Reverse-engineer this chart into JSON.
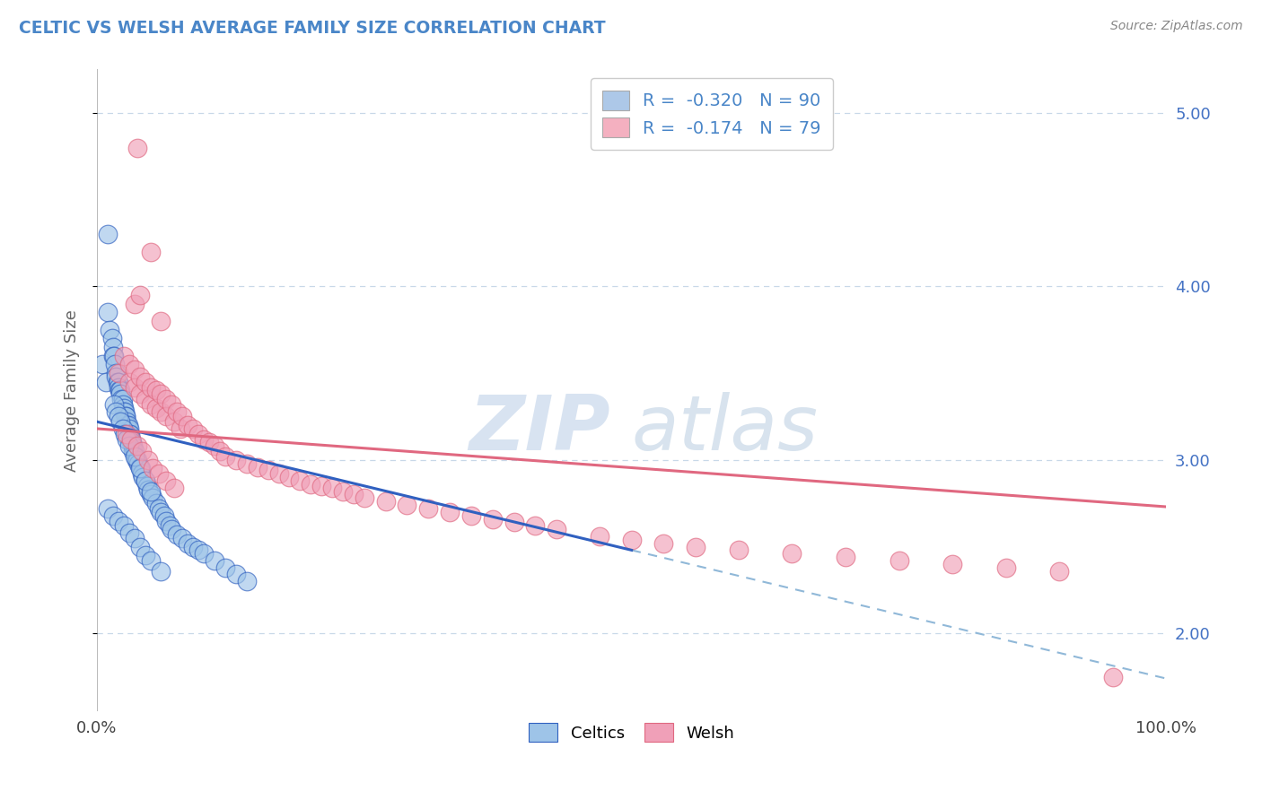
{
  "title": "CELTIC VS WELSH AVERAGE FAMILY SIZE CORRELATION CHART",
  "source": "Source: ZipAtlas.com",
  "ylabel": "Average Family Size",
  "xlim": [
    0.0,
    1.0
  ],
  "ylim": [
    1.55,
    5.25
  ],
  "yticks": [
    2.0,
    3.0,
    4.0,
    5.0
  ],
  "xticks": [
    0.0,
    1.0
  ],
  "xticklabels": [
    "0.0%",
    "100.0%"
  ],
  "legend_entries": [
    {
      "label": "Celtics",
      "R": -0.32,
      "N": 90,
      "color": "#adc8e8"
    },
    {
      "label": "Welsh",
      "R": -0.174,
      "N": 79,
      "color": "#f4b0c0"
    }
  ],
  "celtics_line": {
    "x0": 0.0,
    "y0": 3.22,
    "x1": 0.5,
    "y1": 2.48
  },
  "welsh_line": {
    "x0": 0.0,
    "y0": 3.18,
    "x1": 1.0,
    "y1": 2.73
  },
  "dashed_line": {
    "x0": 0.5,
    "y0": 2.48,
    "x1": 1.0,
    "y1": 1.74
  },
  "background_color": "#ffffff",
  "grid_color": "#c8d8e8",
  "title_color": "#4a86c8",
  "ylabel_color": "#666666",
  "tick_color_right": "#4472c4",
  "celtics_dot_color": "#9ec4e8",
  "welsh_dot_color": "#f0a0b8",
  "celtics_line_color": "#3060c0",
  "welsh_line_color": "#e06880",
  "dashed_line_color": "#90b8d8",
  "watermark_zip": "ZIP",
  "watermark_atlas": "atlas",
  "celtics_x": [
    0.005,
    0.008,
    0.01,
    0.01,
    0.012,
    0.014,
    0.015,
    0.015,
    0.016,
    0.017,
    0.018,
    0.018,
    0.019,
    0.02,
    0.02,
    0.021,
    0.022,
    0.022,
    0.023,
    0.024,
    0.024,
    0.025,
    0.025,
    0.026,
    0.027,
    0.027,
    0.028,
    0.028,
    0.029,
    0.03,
    0.03,
    0.031,
    0.032,
    0.032,
    0.033,
    0.034,
    0.034,
    0.035,
    0.036,
    0.037,
    0.038,
    0.039,
    0.04,
    0.041,
    0.042,
    0.043,
    0.045,
    0.047,
    0.048,
    0.05,
    0.052,
    0.055,
    0.058,
    0.06,
    0.063,
    0.065,
    0.068,
    0.07,
    0.075,
    0.08,
    0.085,
    0.09,
    0.095,
    0.1,
    0.11,
    0.12,
    0.13,
    0.14,
    0.016,
    0.018,
    0.02,
    0.022,
    0.024,
    0.026,
    0.028,
    0.03,
    0.035,
    0.04,
    0.045,
    0.05,
    0.01,
    0.015,
    0.02,
    0.025,
    0.03,
    0.035,
    0.04,
    0.045,
    0.05,
    0.06
  ],
  "celtics_y": [
    3.55,
    3.45,
    4.3,
    3.85,
    3.75,
    3.7,
    3.65,
    3.6,
    3.6,
    3.55,
    3.5,
    3.48,
    3.45,
    3.45,
    3.42,
    3.4,
    3.4,
    3.38,
    3.35,
    3.35,
    3.32,
    3.3,
    3.28,
    3.28,
    3.25,
    3.25,
    3.22,
    3.2,
    3.2,
    3.18,
    3.15,
    3.15,
    3.12,
    3.1,
    3.1,
    3.08,
    3.05,
    3.05,
    3.02,
    3.0,
    3.0,
    2.98,
    2.96,
    2.95,
    2.92,
    2.9,
    2.88,
    2.85,
    2.83,
    2.8,
    2.78,
    2.75,
    2.72,
    2.7,
    2.68,
    2.65,
    2.62,
    2.6,
    2.57,
    2.55,
    2.52,
    2.5,
    2.48,
    2.46,
    2.42,
    2.38,
    2.34,
    2.3,
    3.32,
    3.28,
    3.25,
    3.22,
    3.18,
    3.15,
    3.12,
    3.08,
    3.02,
    2.95,
    2.88,
    2.82,
    2.72,
    2.68,
    2.65,
    2.62,
    2.58,
    2.55,
    2.5,
    2.45,
    2.42,
    2.36
  ],
  "welsh_x": [
    0.02,
    0.025,
    0.03,
    0.03,
    0.035,
    0.035,
    0.04,
    0.04,
    0.045,
    0.045,
    0.05,
    0.05,
    0.055,
    0.055,
    0.06,
    0.06,
    0.065,
    0.065,
    0.07,
    0.072,
    0.075,
    0.078,
    0.08,
    0.085,
    0.09,
    0.095,
    0.1,
    0.105,
    0.11,
    0.115,
    0.12,
    0.13,
    0.14,
    0.15,
    0.16,
    0.17,
    0.18,
    0.19,
    0.2,
    0.21,
    0.22,
    0.23,
    0.24,
    0.25,
    0.27,
    0.29,
    0.31,
    0.33,
    0.35,
    0.37,
    0.39,
    0.41,
    0.43,
    0.47,
    0.5,
    0.53,
    0.56,
    0.6,
    0.65,
    0.7,
    0.75,
    0.8,
    0.85,
    0.9,
    0.95,
    0.038,
    0.05,
    0.06,
    0.035,
    0.04,
    0.028,
    0.032,
    0.038,
    0.042,
    0.048,
    0.052,
    0.058,
    0.065,
    0.072
  ],
  "welsh_y": [
    3.5,
    3.6,
    3.55,
    3.45,
    3.52,
    3.42,
    3.48,
    3.38,
    3.45,
    3.35,
    3.42,
    3.32,
    3.4,
    3.3,
    3.38,
    3.28,
    3.35,
    3.25,
    3.32,
    3.22,
    3.28,
    3.18,
    3.25,
    3.2,
    3.18,
    3.15,
    3.12,
    3.1,
    3.08,
    3.05,
    3.02,
    3.0,
    2.98,
    2.96,
    2.94,
    2.92,
    2.9,
    2.88,
    2.86,
    2.85,
    2.84,
    2.82,
    2.8,
    2.78,
    2.76,
    2.74,
    2.72,
    2.7,
    2.68,
    2.66,
    2.64,
    2.62,
    2.6,
    2.56,
    2.54,
    2.52,
    2.5,
    2.48,
    2.46,
    2.44,
    2.42,
    2.4,
    2.38,
    2.36,
    1.75,
    4.8,
    4.2,
    3.8,
    3.9,
    3.95,
    3.15,
    3.12,
    3.08,
    3.05,
    3.0,
    2.95,
    2.92,
    2.88,
    2.84
  ]
}
